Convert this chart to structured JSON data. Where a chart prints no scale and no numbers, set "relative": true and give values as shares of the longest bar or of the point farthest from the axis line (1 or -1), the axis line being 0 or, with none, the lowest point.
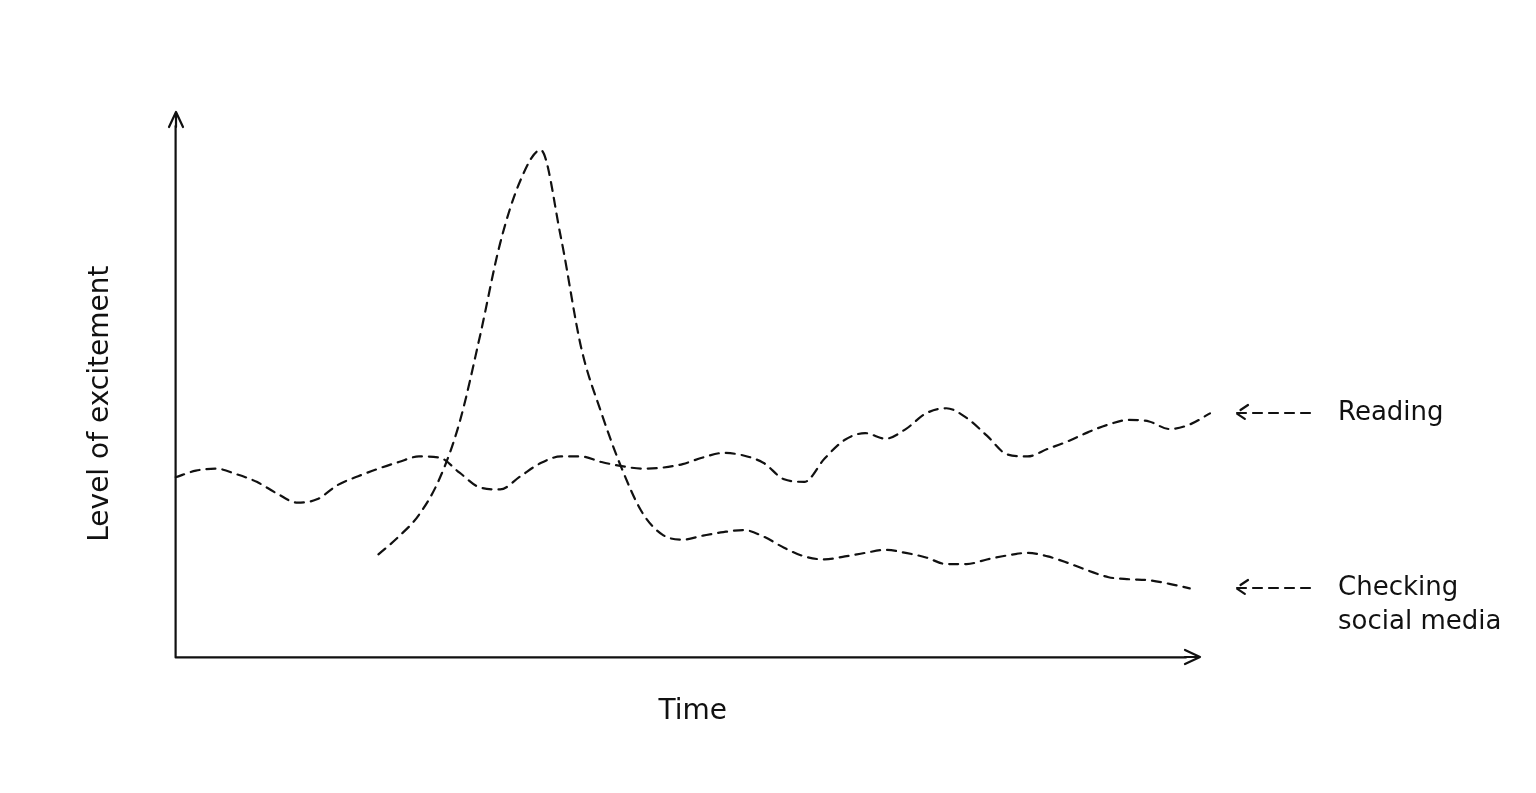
{
  "chart_data": {
    "type": "line",
    "xlabel": "Time",
    "ylabel": "Level of excitement",
    "relative": true,
    "legend": "right",
    "grid": false,
    "marker": "none",
    "line_style": "dashed",
    "tick_labels": false,
    "categories": [
      null,
      null,
      null,
      null,
      null,
      null,
      null,
      null,
      null,
      null,
      null,
      null,
      null,
      null,
      null,
      null,
      null,
      null,
      null,
      null,
      null,
      null,
      null,
      null,
      null,
      null,
      null,
      null,
      null,
      null,
      null,
      null,
      null,
      null,
      null,
      null,
      null,
      null,
      null,
      null,
      null,
      null,
      null,
      null,
      null,
      null,
      null,
      null,
      null,
      null,
      null,
      null
    ],
    "series": [
      {
        "name": "Reading",
        "color": "#111111",
        "values": [
          0.355,
          0.368,
          0.372,
          0.361,
          0.346,
          0.323,
          0.305,
          0.312,
          0.34,
          0.357,
          0.372,
          0.385,
          0.396,
          0.394,
          0.364,
          0.335,
          0.331,
          0.357,
          0.383,
          0.396,
          0.396,
          0.385,
          0.377,
          0.372,
          0.374,
          0.381,
          0.394,
          0.403,
          0.398,
          0.383,
          0.351,
          0.346,
          0.392,
          0.429,
          0.442,
          0.431,
          0.45,
          0.481,
          0.491,
          0.472,
          0.437,
          0.4,
          0.396,
          0.411,
          0.426,
          0.444,
          0.459,
          0.468,
          0.465,
          0.45,
          0.459,
          0.481
        ]
      },
      {
        "name": "Checking social media",
        "color": "#111111",
        "values": [
          null,
          null,
          null,
          null,
          null,
          null,
          null,
          null,
          null,
          null,
          0.203,
          0.238,
          0.281,
          0.351,
          0.463,
          0.632,
          0.816,
          0.94,
          1,
          0.827,
          0.61,
          0.481,
          0.372,
          0.286,
          0.242,
          0.232,
          0.24,
          0.247,
          0.251,
          0.238,
          0.216,
          0.199,
          0.193,
          0.199,
          0.206,
          0.212,
          0.206,
          0.197,
          0.184,
          0.184,
          0.193,
          0.201,
          0.206,
          0.199,
          0.186,
          0.171,
          0.158,
          0.154,
          0.152,
          0.145,
          0.136,
          null
        ]
      }
    ]
  }
}
